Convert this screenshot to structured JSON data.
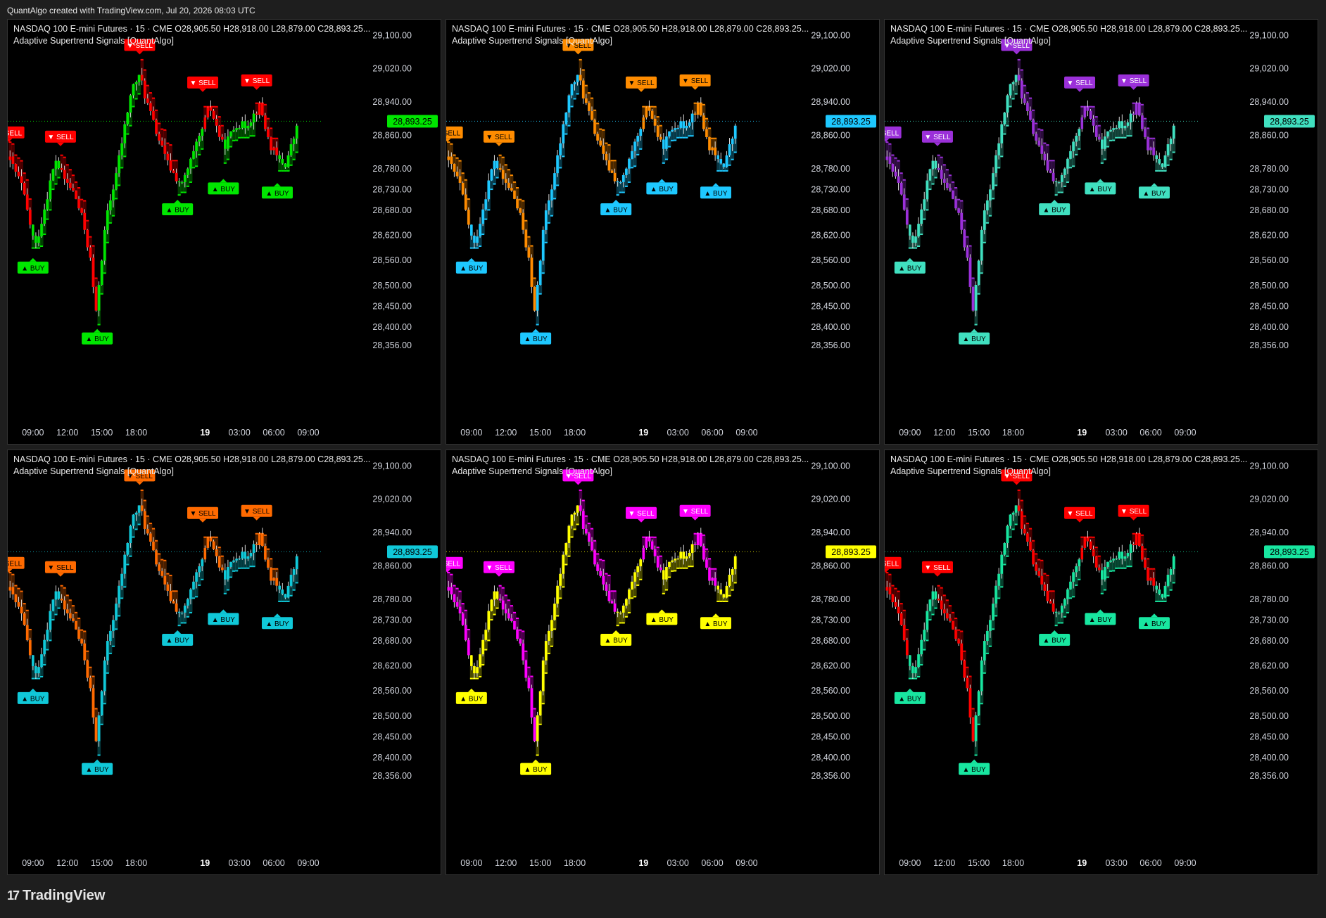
{
  "caption": "QuantAlgo created with TradingView.com, Jul 20, 2026 08:03 UTC",
  "brand": "TradingView",
  "panel_common": {
    "title": "NASDAQ 100 E-mini Futures · 15 · CME  O28,905.50  H28,918.00  L28,879.00  C28,893.25...",
    "subtitle": "Adaptive Supertrend Signals [QuantAlgo]",
    "price_label": "28,893.25",
    "last_price": 28893.25
  },
  "panels": [
    {
      "id": "p1",
      "bull": "#00e600",
      "bear": "#ff0000",
      "price_tag_color": "#00e600",
      "price_tag_text": "#000000",
      "buy_text": "#000000",
      "sell_text": "#ffffff"
    },
    {
      "id": "p2",
      "bull": "#1ec8ff",
      "bear": "#ff8c00",
      "price_tag_color": "#1ec8ff",
      "price_tag_text": "#000000",
      "buy_text": "#000000",
      "sell_text": "#000000"
    },
    {
      "id": "p3",
      "bull": "#40e0c0",
      "bear": "#9b30d9",
      "price_tag_color": "#40e0c0",
      "price_tag_text": "#000000",
      "buy_text": "#000000",
      "sell_text": "#ffffff"
    },
    {
      "id": "p4",
      "bull": "#10c8d8",
      "bear": "#ff6a00",
      "price_tag_color": "#10c8d8",
      "price_tag_text": "#000000",
      "buy_text": "#000000",
      "sell_text": "#000000"
    },
    {
      "id": "p5",
      "bull": "#ffff00",
      "bear": "#ff00ff",
      "price_tag_color": "#ffff00",
      "price_tag_text": "#000000",
      "buy_text": "#000000",
      "sell_text": "#ffffff"
    },
    {
      "id": "p6",
      "bull": "#18e6a0",
      "bear": "#ff0000",
      "price_tag_color": "#18e6a0",
      "price_tag_text": "#000000",
      "buy_text": "#000000",
      "sell_text": "#ffffff"
    }
  ],
  "chart_data": {
    "type": "candlestick",
    "symbol": "NASDAQ 100 E-mini Futures",
    "interval": "15",
    "exchange": "CME",
    "ohlc": {
      "open": 28905.5,
      "high": 28918.0,
      "low": 28879.0,
      "close": 28893.25
    },
    "y_ticks": [
      29100,
      29020,
      28940,
      28860,
      28780,
      28730,
      28680,
      28620,
      28560,
      28500,
      28450,
      28400,
      28356
    ],
    "y_tick_labels": [
      "29,100.00",
      "29,020.00",
      "28,940.00",
      "28,860.00",
      "28,780.00",
      "28,730.00",
      "28,680.00",
      "28,620.00",
      "28,560.00",
      "28,500.00",
      "28,450.00",
      "28,400.00",
      "28,356.00"
    ],
    "ylim": [
      28330,
      29120
    ],
    "x_tick_labels": [
      "09:00",
      "12:00",
      "15:00",
      "18:00",
      "19",
      "03:00",
      "06:00",
      "09:00"
    ],
    "x_tick_hours": [
      9,
      12,
      15,
      18,
      24,
      27,
      30,
      33
    ],
    "xlim_hours": [
      6.8,
      33.8
    ],
    "close_path": [
      [
        7.0,
        28800
      ],
      [
        8.0,
        28740
      ],
      [
        8.8,
        28640
      ],
      [
        9.2,
        28590
      ],
      [
        9.8,
        28660
      ],
      [
        10.6,
        28760
      ],
      [
        11.0,
        28800
      ],
      [
        11.6,
        28760
      ],
      [
        12.6,
        28720
      ],
      [
        13.4,
        28650
      ],
      [
        14.0,
        28560
      ],
      [
        14.5,
        28430
      ],
      [
        14.8,
        28520
      ],
      [
        15.4,
        28660
      ],
      [
        16.2,
        28760
      ],
      [
        17.0,
        28880
      ],
      [
        17.6,
        28970
      ],
      [
        18.0,
        28990
      ],
      [
        18.4,
        29000
      ],
      [
        18.8,
        28950
      ],
      [
        19.6,
        28880
      ],
      [
        20.6,
        28800
      ],
      [
        21.4,
        28760
      ],
      [
        22.0,
        28740
      ],
      [
        22.8,
        28800
      ],
      [
        23.6,
        28860
      ],
      [
        24.4,
        28930
      ],
      [
        25.0,
        28880
      ],
      [
        25.6,
        28830
      ],
      [
        26.2,
        28860
      ],
      [
        26.8,
        28890
      ],
      [
        27.4,
        28880
      ],
      [
        28.0,
        28900
      ],
      [
        28.8,
        28930
      ],
      [
        29.6,
        28840
      ],
      [
        30.4,
        28800
      ],
      [
        31.0,
        28790
      ],
      [
        31.6,
        28840
      ],
      [
        32.2,
        28893
      ]
    ],
    "signals": [
      {
        "type": "SELL",
        "label": "▼ SELL",
        "t": 6.9,
        "price": 28830
      },
      {
        "type": "BUY",
        "label": "▲ BUY",
        "t": 9.0,
        "price": 28580
      },
      {
        "type": "SELL",
        "label": "▼ SELL",
        "t": 11.4,
        "price": 28820
      },
      {
        "type": "BUY",
        "label": "▲ BUY",
        "t": 14.6,
        "price": 28410
      },
      {
        "type": "SELL",
        "label": "▼ SELL",
        "t": 18.3,
        "price": 29040
      },
      {
        "type": "BUY",
        "label": "▲ BUY",
        "t": 21.6,
        "price": 28720
      },
      {
        "type": "SELL",
        "label": "▼ SELL",
        "t": 23.8,
        "price": 28950
      },
      {
        "type": "BUY",
        "label": "▲ BUY",
        "t": 25.6,
        "price": 28770
      },
      {
        "type": "SELL",
        "label": "▼ SELL",
        "t": 28.5,
        "price": 28955
      },
      {
        "type": "BUY",
        "label": "▲ BUY",
        "t": 30.3,
        "price": 28760
      }
    ]
  }
}
